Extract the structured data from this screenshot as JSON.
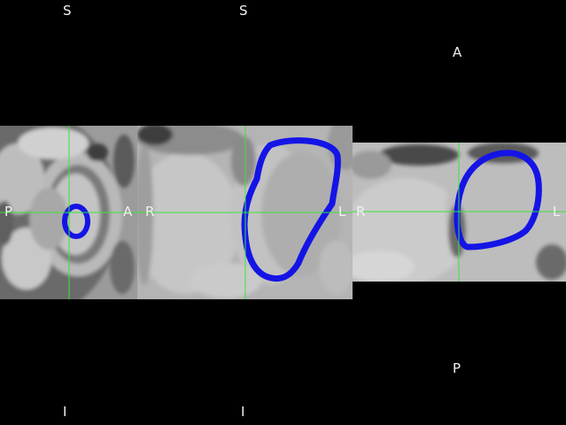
{
  "colors": {
    "background": "#000000",
    "crosshair": "#39e639",
    "contour": "#1414e6",
    "label": "#f2f2f2"
  },
  "views": [
    {
      "name": "sagittal",
      "labels": {
        "top": "S",
        "bottom": "I",
        "left": "P",
        "right": "A"
      }
    },
    {
      "name": "coronal",
      "labels": {
        "top": "S",
        "bottom": "I",
        "left": "R",
        "right": "L"
      }
    },
    {
      "name": "axial",
      "labels": {
        "top": "A",
        "bottom": "P",
        "left": "R",
        "right": "L"
      }
    }
  ]
}
